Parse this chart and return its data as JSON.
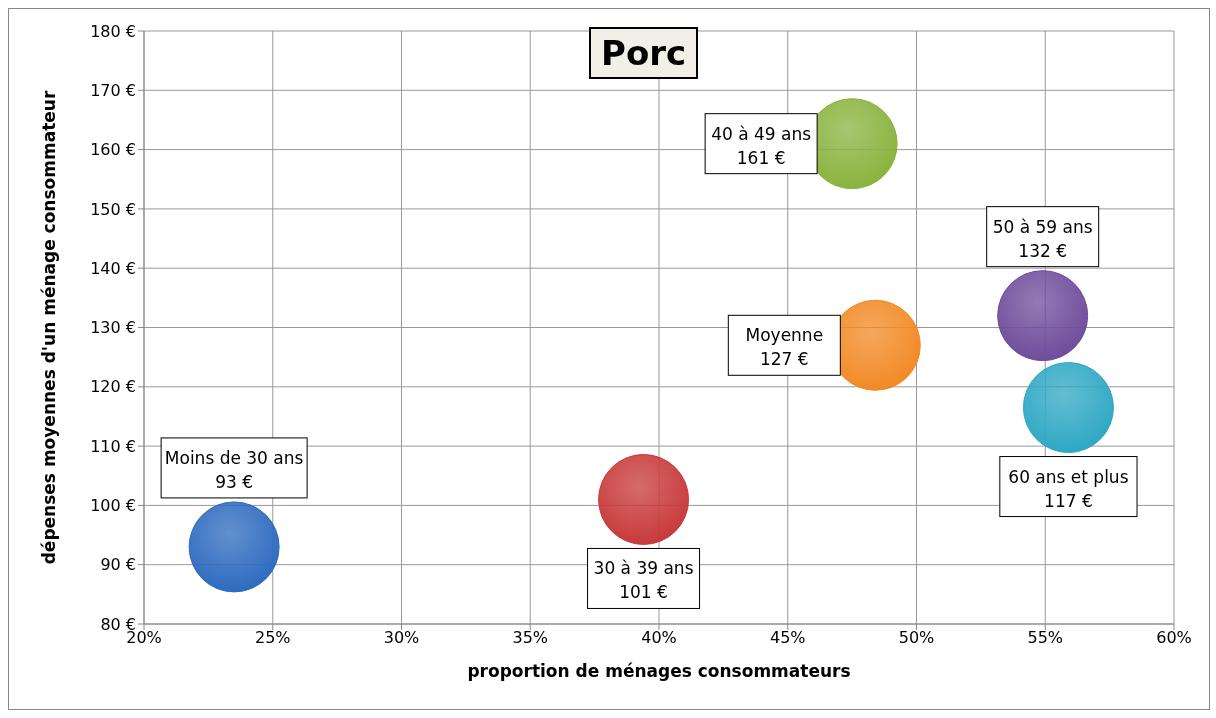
{
  "chart_data": {
    "type": "bubble",
    "title": "Porc",
    "xlabel": "proportion de ménages consommateurs",
    "ylabel": "dépenses moyennes d'un ménage consommateur",
    "xlim": [
      20,
      60
    ],
    "xticks": [
      {
        "value": 20,
        "label": "20%"
      },
      {
        "value": 25,
        "label": "25%"
      },
      {
        "value": 30,
        "label": "30%"
      },
      {
        "value": 35,
        "label": "35%"
      },
      {
        "value": 40,
        "label": "40%"
      },
      {
        "value": 45,
        "label": "45%"
      },
      {
        "value": 50,
        "label": "50%"
      },
      {
        "value": 55,
        "label": "55%"
      },
      {
        "value": 60,
        "label": "60%"
      }
    ],
    "ylim": [
      80,
      180
    ],
    "yticks": [
      {
        "value": 80,
        "label": "80 €"
      },
      {
        "value": 90,
        "label": "90 €"
      },
      {
        "value": 100,
        "label": "100 €"
      },
      {
        "value": 110,
        "label": "110 €"
      },
      {
        "value": 120,
        "label": "120 €"
      },
      {
        "value": 130,
        "label": "130 €"
      },
      {
        "value": 140,
        "label": "140 €"
      },
      {
        "value": 150,
        "label": "150 €"
      },
      {
        "value": 160,
        "label": "160 €"
      },
      {
        "value": 170,
        "label": "170 €"
      },
      {
        "value": 180,
        "label": "180 €"
      }
    ],
    "grid": true,
    "legend": false,
    "series": [
      {
        "name": "Moins de 30 ans",
        "color": "#2e6bbf",
        "x": [
          23.5
        ],
        "values": [
          93
        ],
        "sizes": [
          1
        ],
        "value_labels": [
          "93 €"
        ]
      },
      {
        "name": "30 à 39 ans",
        "color": "#c83a3a",
        "x": [
          39.4
        ],
        "values": [
          101
        ],
        "sizes": [
          1
        ],
        "value_labels": [
          "101 €"
        ]
      },
      {
        "name": "40 à 49 ans",
        "color": "#8ab33f",
        "x": [
          47.5
        ],
        "values": [
          161
        ],
        "sizes": [
          1
        ],
        "value_labels": [
          "161 €"
        ]
      },
      {
        "name": "50 à 59 ans",
        "color": "#6f4d9b",
        "x": [
          54.9
        ],
        "values": [
          132
        ],
        "sizes": [
          1
        ],
        "value_labels": [
          "132 €"
        ]
      },
      {
        "name": "Moyenne",
        "color": "#f28a26",
        "x": [
          48.4
        ],
        "values": [
          127
        ],
        "sizes": [
          1
        ],
        "value_labels": [
          "127 €"
        ]
      },
      {
        "name": "60 ans et plus",
        "color": "#2fa8c4",
        "x": [
          55.9
        ],
        "values": [
          116.5
        ],
        "sizes": [
          1
        ],
        "value_labels": [
          "117 €"
        ]
      }
    ]
  }
}
